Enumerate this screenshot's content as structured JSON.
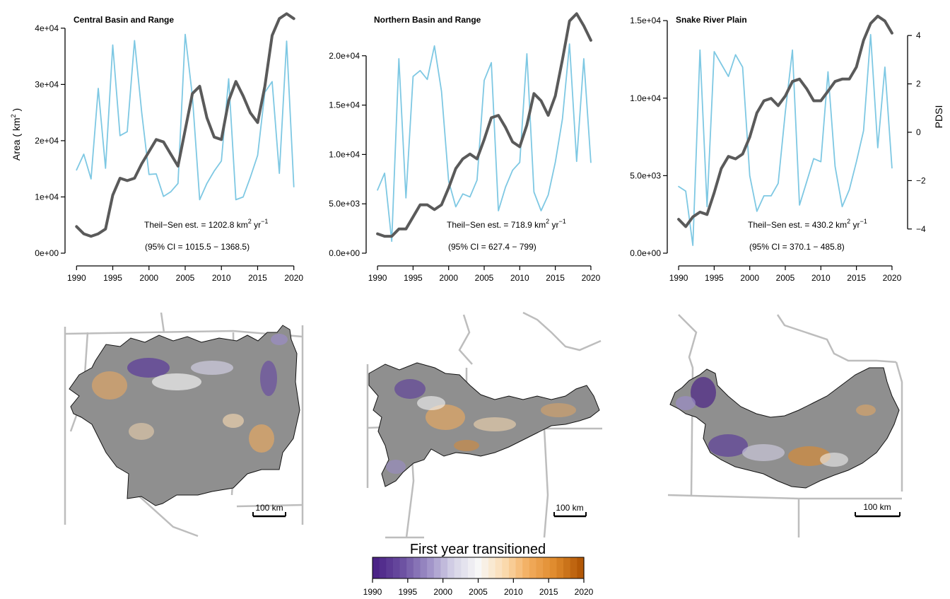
{
  "colors": {
    "area_line": "#7ec8e3",
    "pdsi_line": "#5a5a5a",
    "map_fill": "#8f8f8f",
    "boundary": "#bdbdbd",
    "outline": "#111111",
    "ramp": [
      "#4b2386",
      "#6a4ea0",
      "#9a8cc4",
      "#d4d1e6",
      "#f7f7f7",
      "#fbdcb2",
      "#f2ab5c",
      "#df8a2c",
      "#b35806"
    ]
  },
  "axes": {
    "left_label": "Area ( km",
    "left_label_sup": "2",
    "left_label_end": " )",
    "right_label": "PDSI",
    "x_ticks": [
      "1990",
      "1995",
      "2000",
      "2005",
      "2010",
      "2015",
      "2020"
    ]
  },
  "chart_data": [
    {
      "type": "line",
      "title": "Central Basin and Range",
      "x": [
        1990,
        1991,
        1992,
        1993,
        1994,
        1995,
        1996,
        1997,
        1998,
        1999,
        2000,
        2001,
        2002,
        2003,
        2004,
        2005,
        2006,
        2007,
        2008,
        2009,
        2010,
        2011,
        2012,
        2013,
        2014,
        2015,
        2016,
        2017,
        2018,
        2019,
        2020
      ],
      "series": [
        {
          "axis": "left",
          "values": [
            14800,
            17600,
            13200,
            29300,
            15100,
            37000,
            20900,
            21600,
            37800,
            25000,
            14000,
            14100,
            10100,
            10900,
            12400,
            38900,
            27900,
            9500,
            12400,
            14600,
            16400,
            31000,
            9500,
            10000,
            13500,
            17400,
            28600,
            30500,
            14200,
            37700,
            11800
          ]
        },
        {
          "axis": "right",
          "values": [
            -3.9,
            -4.2,
            -4.3,
            -4.2,
            -4.0,
            -2.6,
            -1.9,
            -2.0,
            -1.9,
            -1.3,
            -0.8,
            -0.3,
            -0.4,
            -0.9,
            -1.4,
            0.1,
            1.6,
            1.9,
            0.6,
            -0.2,
            -0.3,
            1.3,
            2.1,
            1.5,
            0.8,
            0.4,
            1.9,
            4.0,
            4.7,
            4.9,
            4.7
          ]
        }
      ],
      "ylim_left": [
        0,
        43000
      ],
      "ylim_right": [
        -5,
        5
      ],
      "y_ticks_left": [
        {
          "v": 0,
          "l": "0e+00"
        },
        {
          "v": 10000,
          "l": "1e+04"
        },
        {
          "v": 20000,
          "l": "2e+04"
        },
        {
          "v": 30000,
          "l": "3e+04"
        },
        {
          "v": 40000,
          "l": "4e+04"
        }
      ],
      "y_ticks_right": [],
      "estimate_prefix": "Theil−Sen est. = 1202.8 km",
      "estimate_mid": " yr",
      "estimate_sup1": "2",
      "estimate_sup2": "−1",
      "ci_text": "(95% CI = 1015.5 − 1368.5)"
    },
    {
      "type": "line",
      "title": "Northern Basin and Range",
      "x": [
        1990,
        1991,
        1992,
        1993,
        1994,
        1995,
        1996,
        1997,
        1998,
        1999,
        2000,
        2001,
        2002,
        2003,
        2004,
        2005,
        2006,
        2007,
        2008,
        2009,
        2010,
        2011,
        2012,
        2013,
        2014,
        2015,
        2016,
        2017,
        2018,
        2019,
        2020
      ],
      "series": [
        {
          "axis": "left",
          "values": [
            6400,
            8100,
            1200,
            19700,
            5600,
            17900,
            18500,
            17600,
            21000,
            16400,
            7300,
            4700,
            6000,
            5700,
            7400,
            17500,
            19300,
            4300,
            6700,
            8400,
            9200,
            20200,
            6200,
            4300,
            5900,
            9200,
            13600,
            21200,
            9300,
            19700,
            9200
          ]
        },
        {
          "axis": "right",
          "values": [
            -4.2,
            -4.3,
            -4.3,
            -4.0,
            -4.0,
            -3.5,
            -3.0,
            -3.0,
            -3.2,
            -3.0,
            -2.3,
            -1.5,
            -1.1,
            -0.9,
            -1.1,
            -0.3,
            0.6,
            0.7,
            0.2,
            -0.4,
            -0.6,
            0.3,
            1.6,
            1.3,
            0.7,
            1.5,
            3.0,
            4.6,
            4.9,
            4.4,
            3.8
          ]
        }
      ],
      "ylim_left": [
        0,
        24500
      ],
      "ylim_right": [
        -5,
        5
      ],
      "y_ticks_left": [
        {
          "v": 0,
          "l": "0.0e+00"
        },
        {
          "v": 5000,
          "l": "5.0e+03"
        },
        {
          "v": 10000,
          "l": "1.0e+04"
        },
        {
          "v": 15000,
          "l": "1.5e+04"
        },
        {
          "v": 20000,
          "l": "2.0e+04"
        }
      ],
      "y_ticks_right": [],
      "estimate_prefix": "Theil−Sen est. = 718.9 km",
      "estimate_mid": " yr",
      "estimate_sup1": "2",
      "estimate_sup2": "−1",
      "ci_text": "(95% CI = 627.4 − 799)"
    },
    {
      "type": "line",
      "title": "Snake River Plain",
      "x": [
        1990,
        1991,
        1992,
        1993,
        1994,
        1995,
        1996,
        1997,
        1998,
        1999,
        2000,
        2001,
        2002,
        2003,
        2004,
        2005,
        2006,
        2007,
        2008,
        2009,
        2010,
        2011,
        2012,
        2013,
        2014,
        2015,
        2016,
        2017,
        2018,
        2019,
        2020
      ],
      "series": [
        {
          "axis": "left",
          "values": [
            4300,
            4000,
            500,
            13100,
            3000,
            13000,
            12200,
            11400,
            12800,
            12000,
            5000,
            2700,
            3700,
            3700,
            4500,
            9100,
            13100,
            3100,
            4600,
            6100,
            5900,
            11700,
            5600,
            3000,
            4100,
            5900,
            7900,
            14100,
            6800,
            12000,
            5500
          ]
        },
        {
          "axis": "right",
          "values": [
            -3.6,
            -3.9,
            -3.5,
            -3.3,
            -3.4,
            -2.5,
            -1.5,
            -1.0,
            -1.1,
            -0.9,
            -0.2,
            0.8,
            1.3,
            1.4,
            1.1,
            1.5,
            2.1,
            2.2,
            1.8,
            1.3,
            1.3,
            1.7,
            2.1,
            2.2,
            2.2,
            2.7,
            3.8,
            4.5,
            4.8,
            4.6,
            4.1
          ]
        }
      ],
      "ylim_left": [
        0,
        15600
      ],
      "ylim_right": [
        -5,
        5
      ],
      "y_ticks_left": [
        {
          "v": 0,
          "l": "0.0e+00"
        },
        {
          "v": 5000,
          "l": "5.0e+03"
        },
        {
          "v": 10000,
          "l": "1.0e+04"
        },
        {
          "v": 15000,
          "l": "1.5e+04"
        }
      ],
      "y_ticks_right": [
        {
          "v": -4,
          "l": "−4"
        },
        {
          "v": -2,
          "l": "−2"
        },
        {
          "v": 0,
          "l": "0"
        },
        {
          "v": 2,
          "l": "2"
        },
        {
          "v": 4,
          "l": "4"
        }
      ],
      "estimate_prefix": "Theil−Sen est. = 430.2 km",
      "estimate_mid": " yr",
      "estimate_sup1": "2",
      "estimate_sup2": "−1",
      "ci_text": "(95% CI = 370.1 − 485.8)"
    }
  ],
  "maps": [
    {
      "name": "central-basin-map",
      "scale_label": "100 km"
    },
    {
      "name": "northern-basin-map",
      "scale_label": "100 km"
    },
    {
      "name": "snake-river-map",
      "scale_label": "100 km"
    }
  ],
  "legend": {
    "title": "First year transitioned",
    "range": [
      1990,
      2020
    ],
    "ticks": [
      "1990",
      "1995",
      "2000",
      "2005",
      "2010",
      "2015",
      "2020"
    ]
  }
}
